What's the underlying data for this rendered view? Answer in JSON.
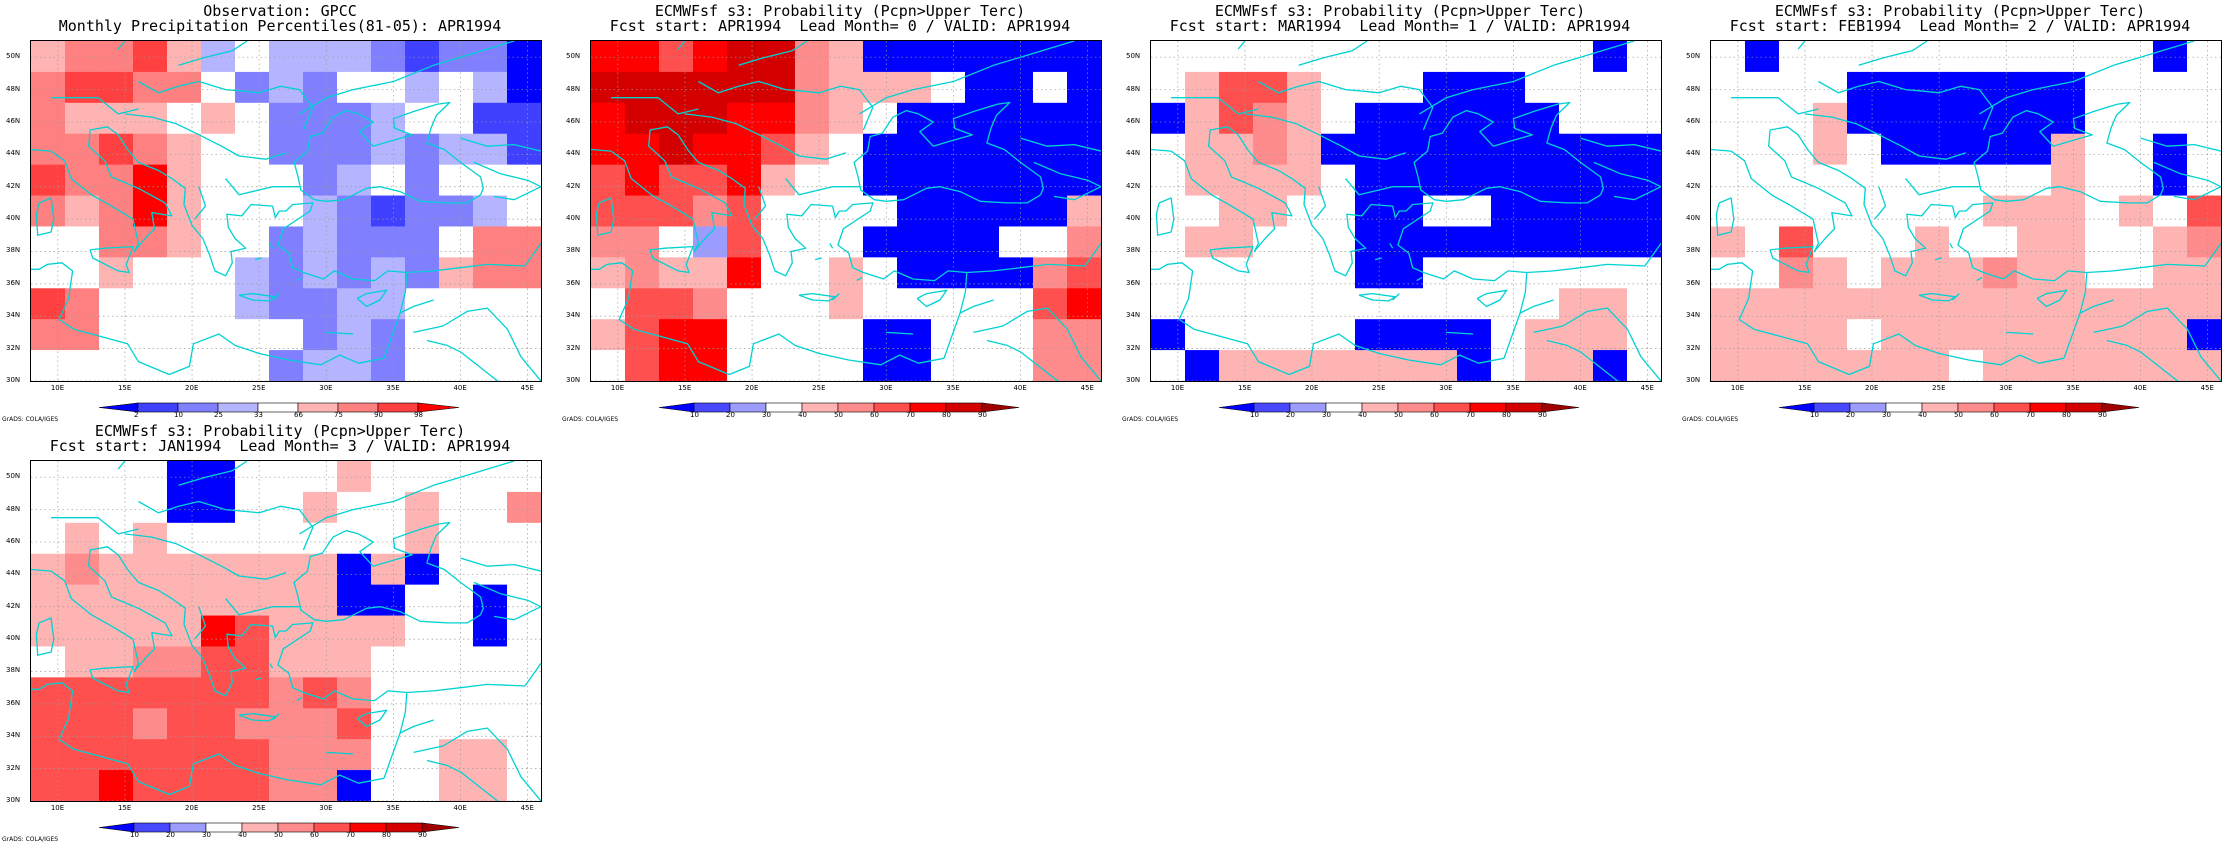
{
  "panels": [
    {
      "title1": "Observation: GPCC",
      "title2": "Monthly Precipitation Percentiles(81-05): APR1994",
      "cbar_labels": [
        "2",
        "10",
        "25",
        "33",
        "66",
        "75",
        "90",
        "98"
      ],
      "cbar_colors": [
        "#0000ff",
        "#4040ff",
        "#8080ff",
        "#b4b4ff",
        "#ffffff",
        "#ffb4b4",
        "#ff8080",
        "#ff4040",
        "#ff0000"
      ],
      "cells": [
        [
          5,
          6,
          6,
          7,
          5,
          3,
          4,
          3,
          3,
          3,
          2,
          1,
          2,
          2,
          0
        ],
        [
          6,
          7,
          7,
          6,
          6,
          4,
          2,
          3,
          2,
          4,
          4,
          3,
          4,
          3,
          0
        ],
        [
          6,
          5,
          5,
          5,
          4,
          5,
          4,
          2,
          2,
          2,
          3,
          4,
          4,
          1,
          1
        ],
        [
          6,
          6,
          7,
          6,
          5,
          4,
          4,
          2,
          2,
          2,
          3,
          2,
          3,
          3,
          1
        ],
        [
          7,
          6,
          6,
          8,
          5,
          4,
          4,
          4,
          2,
          3,
          4,
          2,
          4,
          4,
          4
        ],
        [
          6,
          5,
          6,
          8,
          5,
          4,
          4,
          4,
          3,
          2,
          1,
          2,
          2,
          3,
          4
        ],
        [
          4,
          4,
          6,
          6,
          5,
          4,
          4,
          2,
          3,
          2,
          2,
          2,
          4,
          6,
          6
        ],
        [
          4,
          4,
          5,
          4,
          4,
          4,
          3,
          2,
          3,
          2,
          3,
          2,
          5,
          6,
          6
        ],
        [
          7,
          6,
          4,
          4,
          4,
          4,
          3,
          2,
          2,
          3,
          3,
          4,
          4,
          4,
          4
        ],
        [
          6,
          6,
          4,
          4,
          4,
          4,
          4,
          4,
          2,
          3,
          2,
          4,
          4,
          4,
          4
        ],
        [
          4,
          4,
          4,
          4,
          4,
          4,
          4,
          2,
          3,
          3,
          2,
          4,
          4,
          4,
          4
        ]
      ]
    },
    {
      "title1": "ECMWFsf s3: Probability (Pcpn>Upper Terc)",
      "title2": "Fcst start: APR1994  Lead Month= 0 / VALID: APR1994",
      "cbar_labels": [
        "10",
        "20",
        "30",
        "40",
        "50",
        "60",
        "70",
        "80",
        "90"
      ],
      "cbar_colors": [
        "#0000ff",
        "#4848ff",
        "#9c9cff",
        "#ffffff",
        "#ffb4b4",
        "#ff8c8c",
        "#ff5050",
        "#ff0000",
        "#d40000",
        "#a00000"
      ],
      "cells": [
        [
          7,
          7,
          6,
          7,
          8,
          8,
          5,
          4,
          0,
          0,
          0,
          0,
          0,
          0,
          0
        ],
        [
          8,
          8,
          8,
          8,
          8,
          8,
          5,
          4,
          4,
          4,
          3,
          0,
          0,
          3,
          0
        ],
        [
          7,
          8,
          8,
          8,
          7,
          7,
          5,
          4,
          3,
          0,
          0,
          0,
          0,
          0,
          0
        ],
        [
          7,
          7,
          8,
          7,
          7,
          6,
          4,
          3,
          0,
          0,
          0,
          0,
          0,
          0,
          0
        ],
        [
          6,
          7,
          6,
          6,
          7,
          4,
          3,
          3,
          0,
          0,
          0,
          0,
          0,
          0,
          0
        ],
        [
          6,
          6,
          6,
          5,
          6,
          3,
          3,
          3,
          3,
          0,
          0,
          0,
          0,
          0,
          4
        ],
        [
          5,
          5,
          3,
          2,
          6,
          3,
          3,
          3,
          0,
          0,
          0,
          0,
          3,
          3,
          5
        ],
        [
          4,
          5,
          4,
          4,
          7,
          3,
          3,
          4,
          3,
          0,
          0,
          0,
          0,
          5,
          6
        ],
        [
          3,
          6,
          6,
          5,
          3,
          3,
          3,
          4,
          3,
          3,
          3,
          3,
          3,
          6,
          7
        ],
        [
          4,
          6,
          7,
          7,
          3,
          3,
          3,
          3,
          0,
          0,
          3,
          3,
          3,
          5,
          5
        ],
        [
          3,
          6,
          7,
          7,
          3,
          3,
          3,
          3,
          0,
          0,
          3,
          3,
          3,
          5,
          5
        ]
      ]
    },
    {
      "title1": "ECMWFsf s3: Probability (Pcpn>Upper Terc)",
      "title2": "Fcst start: MAR1994  Lead Month= 1 / VALID: APR1994",
      "cbar_labels": [
        "10",
        "20",
        "30",
        "40",
        "50",
        "60",
        "70",
        "80",
        "90"
      ],
      "cbar_colors": [
        "#0000ff",
        "#4848ff",
        "#9c9cff",
        "#ffffff",
        "#ffb4b4",
        "#ff8c8c",
        "#ff5050",
        "#ff0000",
        "#d40000",
        "#a00000"
      ],
      "cells": [
        [
          3,
          3,
          3,
          3,
          3,
          3,
          3,
          3,
          3,
          3,
          3,
          3,
          3,
          0,
          3
        ],
        [
          3,
          4,
          6,
          6,
          4,
          3,
          3,
          3,
          0,
          0,
          0,
          3,
          3,
          3,
          3
        ],
        [
          0,
          4,
          6,
          5,
          4,
          3,
          0,
          0,
          0,
          0,
          0,
          0,
          3,
          3,
          3
        ],
        [
          3,
          4,
          4,
          5,
          4,
          0,
          0,
          0,
          0,
          0,
          0,
          0,
          0,
          0,
          0
        ],
        [
          3,
          4,
          4,
          4,
          4,
          3,
          0,
          0,
          0,
          0,
          0,
          0,
          0,
          0,
          0
        ],
        [
          3,
          3,
          4,
          4,
          3,
          3,
          0,
          0,
          3,
          3,
          0,
          0,
          0,
          0,
          0
        ],
        [
          3,
          4,
          4,
          3,
          3,
          3,
          0,
          0,
          0,
          0,
          0,
          0,
          0,
          0,
          0
        ],
        [
          3,
          3,
          3,
          3,
          3,
          3,
          0,
          0,
          3,
          3,
          3,
          3,
          3,
          3,
          3
        ],
        [
          3,
          3,
          3,
          3,
          3,
          3,
          3,
          3,
          3,
          3,
          3,
          3,
          4,
          4,
          3
        ],
        [
          0,
          3,
          3,
          3,
          3,
          3,
          0,
          0,
          0,
          0,
          3,
          4,
          4,
          4,
          3
        ],
        [
          3,
          0,
          4,
          4,
          4,
          4,
          4,
          4,
          4,
          0,
          3,
          4,
          4,
          0,
          3
        ]
      ]
    },
    {
      "title1": "ECMWFsf s3: Probability (Pcpn>Upper Terc)",
      "title2": "Fcst start: FEB1994  Lead Month= 2 / VALID: APR1994",
      "cbar_labels": [
        "10",
        "20",
        "30",
        "40",
        "50",
        "60",
        "70",
        "80",
        "90"
      ],
      "cbar_colors": [
        "#0000ff",
        "#4848ff",
        "#9c9cff",
        "#ffffff",
        "#ffb4b4",
        "#ff8c8c",
        "#ff5050",
        "#ff0000",
        "#d40000",
        "#a00000"
      ],
      "cells": [
        [
          3,
          0,
          3,
          3,
          3,
          3,
          3,
          3,
          3,
          3,
          3,
          3,
          3,
          0,
          3
        ],
        [
          3,
          3,
          3,
          3,
          0,
          0,
          0,
          0,
          0,
          0,
          0,
          3,
          3,
          3,
          3
        ],
        [
          3,
          3,
          3,
          4,
          0,
          0,
          0,
          0,
          0,
          0,
          0,
          3,
          3,
          3,
          3
        ],
        [
          3,
          3,
          3,
          4,
          3,
          0,
          0,
          0,
          0,
          0,
          4,
          3,
          3,
          0,
          3
        ],
        [
          3,
          3,
          3,
          3,
          3,
          3,
          3,
          3,
          3,
          3,
          4,
          3,
          3,
          0,
          3
        ],
        [
          3,
          3,
          3,
          3,
          3,
          3,
          3,
          3,
          4,
          4,
          4,
          3,
          4,
          3,
          6
        ],
        [
          4,
          3,
          6,
          3,
          3,
          3,
          4,
          3,
          3,
          4,
          4,
          3,
          3,
          4,
          5
        ],
        [
          3,
          3,
          5,
          4,
          3,
          4,
          4,
          4,
          5,
          4,
          4,
          3,
          3,
          4,
          4
        ],
        [
          4,
          4,
          4,
          4,
          4,
          4,
          4,
          4,
          4,
          4,
          4,
          4,
          4,
          4,
          4
        ],
        [
          4,
          4,
          4,
          4,
          3,
          4,
          4,
          4,
          4,
          4,
          4,
          4,
          4,
          4,
          0
        ],
        [
          4,
          4,
          4,
          4,
          4,
          4,
          4,
          3,
          4,
          4,
          4,
          4,
          4,
          4,
          4
        ]
      ]
    },
    {
      "title1": "ECMWFsf s3: Probability (Pcpn>Upper Terc)",
      "title2": "Fcst start: JAN1994  Lead Month= 3 / VALID: APR1994",
      "cbar_labels": [
        "10",
        "20",
        "30",
        "40",
        "50",
        "60",
        "70",
        "80",
        "90"
      ],
      "cbar_colors": [
        "#0000ff",
        "#4848ff",
        "#9c9cff",
        "#ffffff",
        "#ffb4b4",
        "#ff8c8c",
        "#ff5050",
        "#ff0000",
        "#d40000",
        "#a00000"
      ],
      "cells": [
        [
          3,
          3,
          3,
          3,
          0,
          0,
          3,
          3,
          3,
          4,
          3,
          3,
          3,
          3,
          3
        ],
        [
          3,
          3,
          3,
          3,
          0,
          0,
          3,
          3,
          4,
          3,
          3,
          4,
          3,
          3,
          5
        ],
        [
          3,
          4,
          3,
          4,
          3,
          3,
          3,
          3,
          3,
          3,
          3,
          4,
          3,
          3,
          3
        ],
        [
          4,
          5,
          4,
          4,
          4,
          4,
          4,
          4,
          4,
          0,
          4,
          0,
          3,
          3,
          3
        ],
        [
          4,
          4,
          4,
          4,
          4,
          4,
          4,
          4,
          4,
          0,
          0,
          3,
          3,
          0,
          3
        ],
        [
          4,
          4,
          4,
          4,
          4,
          7,
          6,
          4,
          4,
          4,
          4,
          3,
          3,
          0,
          3
        ],
        [
          3,
          4,
          4,
          5,
          5,
          6,
          6,
          4,
          4,
          4,
          3,
          3,
          3,
          3,
          3
        ],
        [
          6,
          6,
          6,
          6,
          6,
          6,
          6,
          5,
          6,
          5,
          3,
          3,
          3,
          3,
          3
        ],
        [
          6,
          6,
          6,
          5,
          6,
          6,
          5,
          5,
          5,
          6,
          3,
          3,
          3,
          3,
          3
        ],
        [
          6,
          6,
          6,
          6,
          6,
          6,
          6,
          5,
          5,
          5,
          3,
          3,
          4,
          4,
          3
        ],
        [
          6,
          6,
          7,
          6,
          6,
          6,
          6,
          5,
          5,
          0,
          3,
          3,
          4,
          4,
          3
        ]
      ]
    }
  ],
  "lat_labels": [
    "50N",
    "48N",
    "46N",
    "44N",
    "42N",
    "40N",
    "38N",
    "36N",
    "34N",
    "32N",
    "30N"
  ],
  "lon_labels": [
    "10E",
    "15E",
    "20E",
    "25E",
    "30E",
    "35E",
    "40E",
    "45E"
  ],
  "credit": "GrADS: COLA/IGES",
  "coast_color": "#00d2d2"
}
